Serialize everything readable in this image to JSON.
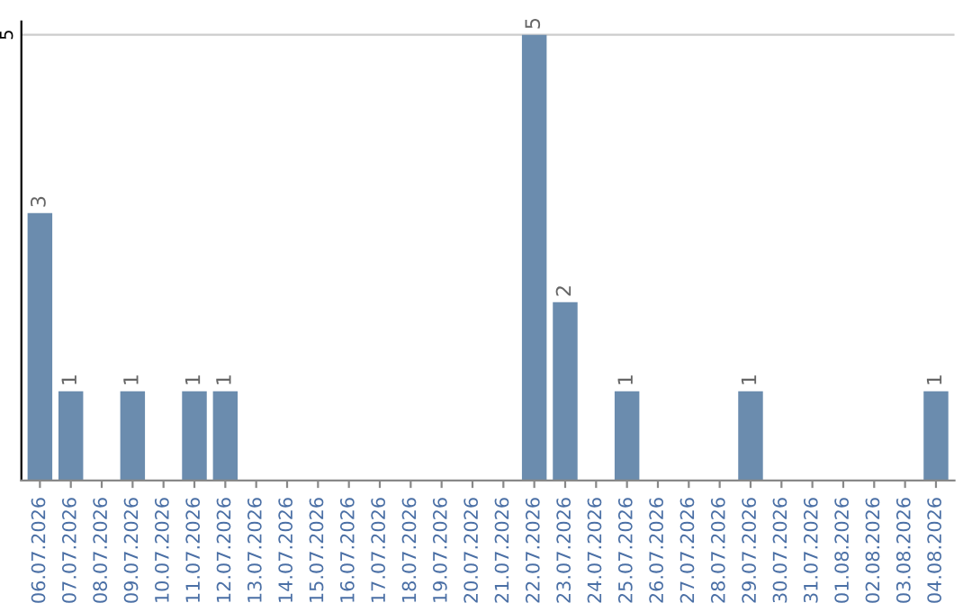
{
  "chart_data": {
    "type": "bar",
    "categories": [
      "06.07.2026",
      "07.07.2026",
      "08.07.2026",
      "09.07.2026",
      "10.07.2026",
      "11.07.2026",
      "12.07.2026",
      "13.07.2026",
      "14.07.2026",
      "15.07.2026",
      "16.07.2026",
      "17.07.2026",
      "18.07.2026",
      "19.07.2026",
      "20.07.2026",
      "21.07.2026",
      "22.07.2026",
      "23.07.2026",
      "24.07.2026",
      "25.07.2026",
      "26.07.2026",
      "27.07.2026",
      "28.07.2026",
      "29.07.2026",
      "30.07.2026",
      "31.07.2026",
      "01.08.2026",
      "02.08.2026",
      "03.08.2026",
      "04.08.2026"
    ],
    "values": [
      3,
      1,
      0,
      1,
      0,
      1,
      1,
      0,
      0,
      0,
      0,
      0,
      0,
      0,
      0,
      0,
      5,
      2,
      0,
      1,
      0,
      0,
      0,
      1,
      0,
      0,
      0,
      0,
      0,
      1
    ],
    "value_labels": [
      "3",
      "1",
      null,
      "1",
      null,
      "1",
      "1",
      null,
      null,
      null,
      null,
      null,
      null,
      null,
      null,
      null,
      "5",
      "2",
      null,
      "1",
      null,
      null,
      null,
      "1",
      null,
      null,
      null,
      null,
      null,
      "1"
    ],
    "color": "#6b8cae",
    "ylim": [
      0,
      5.15
    ],
    "yticks": [
      5
    ],
    "grid": "y"
  }
}
